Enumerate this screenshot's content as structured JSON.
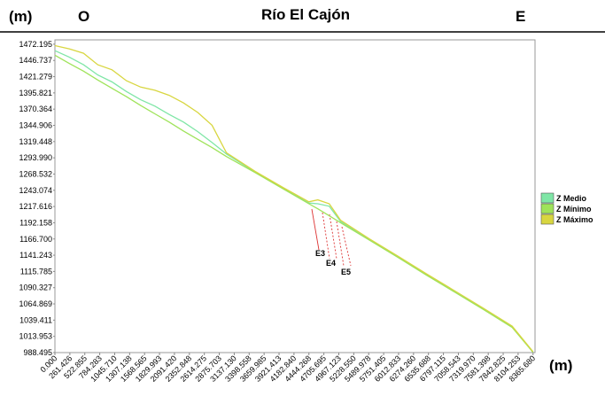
{
  "chart_data": {
    "type": "line",
    "title": "Río El Cajón",
    "y_label": "(m)",
    "x_label": "(m)",
    "left_label": "O",
    "right_label": "E",
    "annotations": [
      "E3",
      "E4",
      "E5"
    ],
    "x": [
      0,
      250,
      500,
      750,
      1000,
      1250,
      1500,
      1750,
      2000,
      2250,
      2500,
      2750,
      3000,
      3500,
      4000,
      4444,
      4600,
      4800,
      5000,
      5500,
      6000,
      6500,
      7000,
      7500,
      8000,
      8365
    ],
    "series": [
      {
        "name": "Z Medio",
        "color": "#7fe6a6",
        "values": [
          1462,
          1452,
          1440,
          1424,
          1413,
          1398,
          1385,
          1375,
          1362,
          1350,
          1335,
          1318,
          1300,
          1272,
          1246,
          1223,
          1222,
          1218,
          1194,
          1166,
          1139,
          1111,
          1084,
          1057,
          1029,
          989
        ]
      },
      {
        "name": "Z Mínimo",
        "color": "#9fe35a",
        "values": [
          1455,
          1442,
          1430,
          1416,
          1403,
          1390,
          1376,
          1363,
          1350,
          1336,
          1323,
          1310,
          1296,
          1271,
          1245,
          1222,
          1214,
          1203,
          1192,
          1165,
          1138,
          1110,
          1083,
          1056,
          1028,
          989
        ]
      },
      {
        "name": "Z Máximo",
        "color": "#d8d640",
        "values": [
          1470,
          1465,
          1458,
          1440,
          1432,
          1415,
          1405,
          1400,
          1392,
          1380,
          1365,
          1345,
          1302,
          1273,
          1247,
          1225,
          1228,
          1222,
          1196,
          1167,
          1140,
          1112,
          1085,
          1058,
          1030,
          990
        ]
      }
    ],
    "xlim": [
      0,
      8400
    ],
    "ylim": [
      988.495,
      1479
    ],
    "xticks": [
      {
        "value": 0,
        "label": "0.000"
      },
      261.426,
      522.855,
      784.283,
      {
        "value": 1045.71,
        "label": "1045.710"
      },
      1307.138,
      1568.565,
      1829.993,
      {
        "value": 2091.42,
        "label": "2091.420"
      },
      2352.848,
      2614.275,
      2875.703,
      {
        "value": 3137.13,
        "label": "3137.130"
      },
      3398.558,
      3659.985,
      3921.413,
      {
        "value": 4182.84,
        "label": "4182.840"
      },
      4444.268,
      4705.695,
      4967.123,
      {
        "value": 5228.55,
        "label": "5228.550"
      },
      5489.978,
      5751.405,
      6012.833,
      {
        "value": 6274.26,
        "label": "6274.260"
      },
      6535.688,
      6797.115,
      7058.543,
      {
        "value": 7319.97,
        "label": "7319.970"
      },
      7581.398,
      7842.825,
      8104.253,
      {
        "value": 8365.68,
        "label": "8365.680"
      }
    ],
    "yticks": [
      1472.195,
      1446.737,
      1421.279,
      1395.821,
      1370.364,
      1344.906,
      1319.448,
      {
        "value": 1293.99,
        "label": "1293.990"
      },
      1268.532,
      1243.074,
      1217.616,
      1192.158,
      {
        "value": 1166.7,
        "label": "1166.700"
      },
      1141.243,
      1115.785,
      1090.327,
      1064.869,
      1039.411,
      1013.953,
      988.495
    ],
    "grid": false,
    "legend": "right"
  }
}
